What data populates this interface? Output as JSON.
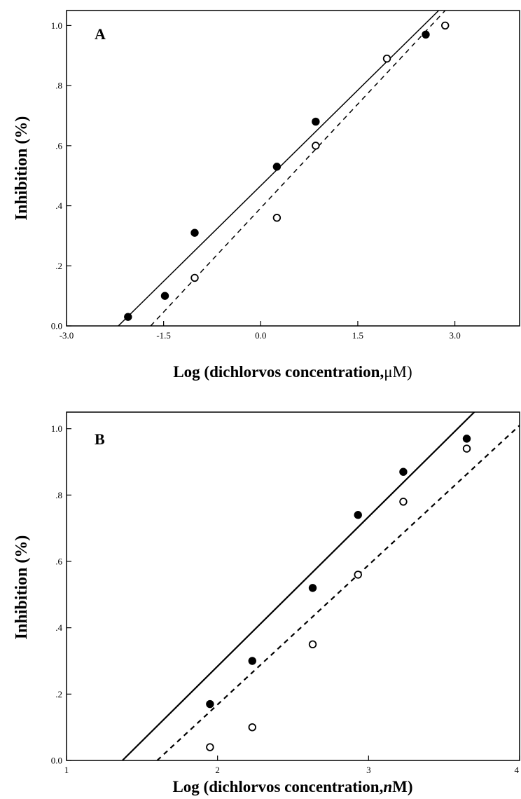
{
  "chart_data": [
    {
      "type": "scatter",
      "panel_label": "A",
      "xlabel_prefix": "Log (dichlorvos concentration,",
      "xlabel_unit": "μM",
      "xlabel_suffix": ")",
      "ylabel": "Inhibition (%)",
      "xlim": [
        -3.0,
        4.0
      ],
      "ylim": [
        0.0,
        1.05
      ],
      "xticks": [
        -3.0,
        -1.5,
        0.0,
        1.5,
        3.0
      ],
      "xtick_labels": [
        "-3.0",
        "-1.5",
        "0.0",
        "1.5",
        "3.0"
      ],
      "yticks": [
        0.0,
        0.2,
        0.4,
        0.6,
        0.8,
        1.0
      ],
      "ytick_labels": [
        "0.0",
        ".2",
        ".4",
        ".6",
        ".8",
        "1.0"
      ],
      "grid": false,
      "series": [
        {
          "marker": "filled-circle",
          "line_style": "solid",
          "points": [
            {
              "x": -2.05,
              "y": 0.03
            },
            {
              "x": -1.48,
              "y": 0.1
            },
            {
              "x": -1.02,
              "y": 0.31
            },
            {
              "x": 0.25,
              "y": 0.53
            },
            {
              "x": 0.85,
              "y": 0.68
            },
            {
              "x": 2.55,
              "y": 0.97
            }
          ],
          "fit_line": [
            [
              -2.2,
              0.0
            ],
            [
              2.75,
              1.05
            ]
          ]
        },
        {
          "marker": "open-circle",
          "line_style": "dashed",
          "points": [
            {
              "x": -1.02,
              "y": 0.16
            },
            {
              "x": 0.25,
              "y": 0.36
            },
            {
              "x": 0.85,
              "y": 0.6
            },
            {
              "x": 1.95,
              "y": 0.89
            },
            {
              "x": 2.85,
              "y": 1.0
            }
          ],
          "fit_line": [
            [
              -1.7,
              0.0
            ],
            [
              2.85,
              1.05
            ]
          ]
        }
      ]
    },
    {
      "type": "scatter",
      "panel_label": "B",
      "xlabel_prefix": "Log (dichlorvos concentration,",
      "xlabel_unit": "n",
      "xlabel_suffix": "M)",
      "ylabel": "Inhibition (%)",
      "xlim": [
        1,
        4
      ],
      "ylim": [
        0.0,
        1.05
      ],
      "xticks": [
        1,
        2,
        3,
        4
      ],
      "xtick_labels": [
        "1",
        "2",
        "3",
        "4"
      ],
      "yticks": [
        0.0,
        0.2,
        0.4,
        0.6,
        0.8,
        1.0
      ],
      "ytick_labels": [
        "0.0",
        ".2",
        ".4",
        ".6",
        ".8",
        "1.0"
      ],
      "grid": false,
      "series": [
        {
          "marker": "filled-circle",
          "line_style": "solid",
          "points": [
            {
              "x": 1.95,
              "y": 0.17
            },
            {
              "x": 2.23,
              "y": 0.3
            },
            {
              "x": 2.63,
              "y": 0.52
            },
            {
              "x": 2.93,
              "y": 0.74
            },
            {
              "x": 3.23,
              "y": 0.87
            },
            {
              "x": 3.65,
              "y": 0.97
            }
          ],
          "fit_line": [
            [
              1.37,
              0.0
            ],
            [
              3.7,
              1.05
            ]
          ]
        },
        {
          "marker": "open-circle",
          "line_style": "dashed",
          "points": [
            {
              "x": 1.95,
              "y": 0.04
            },
            {
              "x": 2.23,
              "y": 0.1
            },
            {
              "x": 2.63,
              "y": 0.35
            },
            {
              "x": 2.93,
              "y": 0.56
            },
            {
              "x": 3.23,
              "y": 0.78
            },
            {
              "x": 3.65,
              "y": 0.94
            }
          ],
          "fit_line": [
            [
              1.6,
              0.0
            ],
            [
              4.0,
              1.01
            ]
          ]
        }
      ]
    }
  ]
}
